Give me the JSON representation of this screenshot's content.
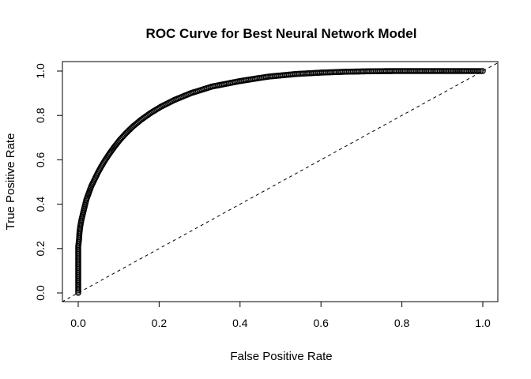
{
  "chart_data": {
    "type": "scatter",
    "title": "ROC Curve for Best Neural Network Model",
    "xlabel": "False Positive Rate",
    "ylabel": "True Positive Rate",
    "xlim": [
      0,
      1
    ],
    "ylim": [
      0,
      1
    ],
    "x_ticks": [
      "0.0",
      "0.2",
      "0.4",
      "0.6",
      "0.8",
      "1.0"
    ],
    "y_ticks": [
      "0.0",
      "0.2",
      "0.4",
      "0.6",
      "0.8",
      "1.0"
    ],
    "grid": false,
    "reference_line": {
      "style": "dashed",
      "from": [
        0,
        0
      ],
      "to": [
        1,
        1
      ]
    },
    "series": [
      {
        "marker": "open-circle",
        "color": "#000000",
        "points": [
          [
            0.0,
            0.0
          ],
          [
            0.0,
            0.03
          ],
          [
            0.0,
            0.06
          ],
          [
            0.0,
            0.09
          ],
          [
            0.0,
            0.12
          ],
          [
            0.0,
            0.15
          ],
          [
            0.0,
            0.18
          ],
          [
            0.0,
            0.21
          ],
          [
            0.002,
            0.24
          ],
          [
            0.003,
            0.27
          ],
          [
            0.005,
            0.3
          ],
          [
            0.008,
            0.33
          ],
          [
            0.012,
            0.36
          ],
          [
            0.016,
            0.39
          ],
          [
            0.02,
            0.42
          ],
          [
            0.026,
            0.45
          ],
          [
            0.032,
            0.48
          ],
          [
            0.04,
            0.51
          ],
          [
            0.048,
            0.54
          ],
          [
            0.057,
            0.57
          ],
          [
            0.067,
            0.6
          ],
          [
            0.078,
            0.63
          ],
          [
            0.09,
            0.66
          ],
          [
            0.103,
            0.69
          ],
          [
            0.118,
            0.72
          ],
          [
            0.135,
            0.75
          ],
          [
            0.155,
            0.78
          ],
          [
            0.178,
            0.81
          ],
          [
            0.205,
            0.84
          ],
          [
            0.238,
            0.87
          ],
          [
            0.278,
            0.9
          ],
          [
            0.33,
            0.93
          ],
          [
            0.4,
            0.955
          ],
          [
            0.47,
            0.975
          ],
          [
            0.54,
            0.987
          ],
          [
            0.6,
            0.993
          ],
          [
            0.66,
            0.997
          ],
          [
            0.72,
            0.999
          ],
          [
            0.78,
            1.0
          ],
          [
            0.82,
            1.0
          ],
          [
            0.86,
            1.0
          ],
          [
            0.9,
            1.0
          ],
          [
            0.93,
            1.0
          ],
          [
            0.96,
            1.0
          ],
          [
            0.98,
            1.0
          ],
          [
            1.0,
            1.0
          ]
        ]
      }
    ]
  }
}
